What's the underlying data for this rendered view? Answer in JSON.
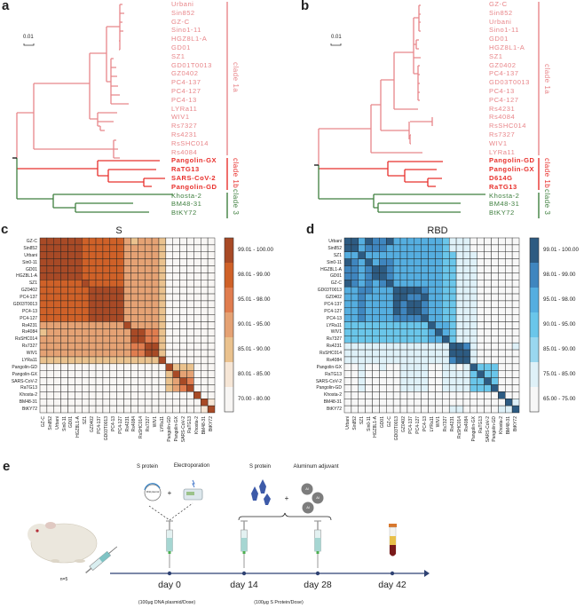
{
  "panels": {
    "a": "a",
    "b": "b",
    "c": "c",
    "d": "d",
    "e": "e"
  },
  "tree_a": {
    "scale_label": "0.01",
    "leaves": [
      "Urbani",
      "Sin852",
      "GZ-C",
      "Sino1-11",
      "HGZ8L1-A",
      "GD01",
      "SZ1",
      "GD01T0013",
      "GZ0402",
      "PC4-137",
      "PC4-127",
      "PC4-13",
      "LYRa11",
      "WIV1",
      "Rs7327",
      "Rs4231",
      "RsSHC014",
      "Rs4084",
      "Pangolin-GX",
      "RaTG13",
      "SARS-CoV-2",
      "Pangolin-GD",
      "Khosta-2",
      "BM48-31",
      "BtKY72"
    ],
    "clades": [
      "clade 1a",
      "clade 1b",
      "clade 3"
    ]
  },
  "tree_b": {
    "scale_label": "0.01",
    "leaves": [
      "GZ-C",
      "Sin852",
      "Urbani",
      "Sino1-11",
      "GD01",
      "HGZ8L1-A",
      "SZ1",
      "GZ0402",
      "PC4-137",
      "GD03T0013",
      "PC4-13",
      "PC4-127",
      "Rs4231",
      "Rs4084",
      "RsSHC014",
      "Rs7327",
      "WIV1",
      "LYRa11",
      "Pangolin-GD",
      "Pangolin-GX",
      "D614G",
      "RaTG13",
      "Khosta-2",
      "BM48-31",
      "BtKY72"
    ],
    "clades": [
      "clade 1a",
      "clade 1b",
      "clade 3"
    ]
  },
  "clade_colors": {
    "clade_1a": "#e8868a",
    "clade_1b": "#e8302c",
    "clade_3": "#3f7f3f"
  },
  "chart_data": [
    {
      "type": "heatmap",
      "title": "S",
      "labels": [
        "GZ-C",
        "Sin852",
        "Urbani",
        "Sin0-11",
        "GD01",
        "HGZ8L1-A",
        "SZ1",
        "GZ0402",
        "PC4-137",
        "GD03T0013",
        "PC4-13",
        "PC4-127",
        "Rs4231",
        "Rs4084",
        "RsSHC014",
        "Rs7327",
        "WIV1",
        "LYRa11",
        "Pangolin-GD",
        "Pangolin-GX",
        "SARS-CoV-2",
        "RaTG13",
        "Khosta-2",
        "BM48-31",
        "BtKY72"
      ],
      "bins": [
        "70.00 - 80.00",
        "80.01 - 85.00",
        "85.01 - 90.00",
        "90.01 - 95.00",
        "95.01 - 98.00",
        "98.01 - 99.00",
        "99.01 - 100.00"
      ],
      "colors": [
        "#f8f6f4",
        "#f6e6d6",
        "#eac28e",
        "#e5a274",
        "#e07d4f",
        "#cf6128",
        "#a84a26"
      ],
      "legend": "right",
      "levels": [
        "6666665555553233320000000",
        "6666665555553333320000000",
        "6666665555553333320000000",
        "6666665555553333320000000",
        "6666665555553333320000000",
        "6666665555553333320000000",
        "5555556555553333320000000",
        "5555555666663333320000000",
        "5555555666663333320000000",
        "5555555666663333320000000",
        "5555555666663333320000000",
        "5555555666663333320000000",
        "3333333333336333320000000",
        "2333333333333664420000000",
        "3333333333333664420000000",
        "3333333333333446620000000",
        "3333333333333446620000000",
        "2222222222222222260000000",
        "0000000000000000006222000",
        "0000000000000000002633000",
        "0000000000000000002364000",
        "0000000000000000002346000",
        "0000000000000000000000600",
        "0000000000000000000000061",
        "0000000000000000000000016"
      ]
    },
    {
      "type": "heatmap",
      "title": "RBD",
      "labels": [
        "Urbani",
        "Sin852",
        "SZ1",
        "Sin0-11",
        "HGZ8L1-A",
        "GD01",
        "GZ-C",
        "GD03T0013",
        "GZ0402",
        "PC4-137",
        "PC4-127",
        "PC4-13",
        "LYRa11",
        "WIV1",
        "Rs7327",
        "Rs4231",
        "RsSHC014",
        "Rs4084",
        "Pangolin-GX",
        "RaTG13",
        "SARS-CoV-2",
        "Pangolin-GD",
        "Khosta-2",
        "BM48-31",
        "BtKY72"
      ],
      "bins": [
        "65.00 - 75.00",
        "75.01 - 85.00",
        "85.01 - 90.00",
        "90.01 - 95.00",
        "95.01 - 98.00",
        "98.01 - 99.00",
        "99.01 - 100.00"
      ],
      "colors": [
        "#f7f7f7",
        "#dff1f8",
        "#99d7ef",
        "#6ac6ea",
        "#55aee0",
        "#3f86bf",
        "#2d5b82"
      ],
      "legend": "right",
      "levels": [
        "6646556444444431110000000",
        "6645554444444431110000000",
        "4464444444444433111000000",
        "6546455444444433111000000",
        "5545665444444433111000000",
        "5545665444444433111000000",
        "6545456444444433111000000",
        "4455444666654433111000000",
        "4454444665564433111000000",
        "4454444656654433111000000",
        "4454444656654433111000000",
        "4454444555564433111000000",
        "3333333333336443111000000",
        "3333333333334643111000000",
        "3333333333334463111000000",
        "1111111111111116651000001",
        "1111111111111116661000000",
        "1111111111111115661000000",
        "0010010011110011016333000",
        "0010000011110011113633000",
        "0010000011110011113363000",
        "0010000011110011113336000",
        "0000000000000000000000600",
        "0000000000000000000000061",
        "0000000000000001100000116"
      ]
    }
  ],
  "timeline": {
    "group_size": "n=5",
    "dna_label": "DNA plasmid",
    "step1_labels": [
      "S protein",
      "Electroporation"
    ],
    "step2_labels": [
      "S protein",
      "Aluminum adjuvant"
    ],
    "plus": "+",
    "al_label": "Al",
    "days": [
      "day 0",
      "day 14",
      "day 28",
      "day 42"
    ],
    "dose_notes": [
      "(100μg DNA plasmid/Dose)",
      "(100μg S Protein/Dose)"
    ],
    "axis_color": "#2f4273"
  }
}
